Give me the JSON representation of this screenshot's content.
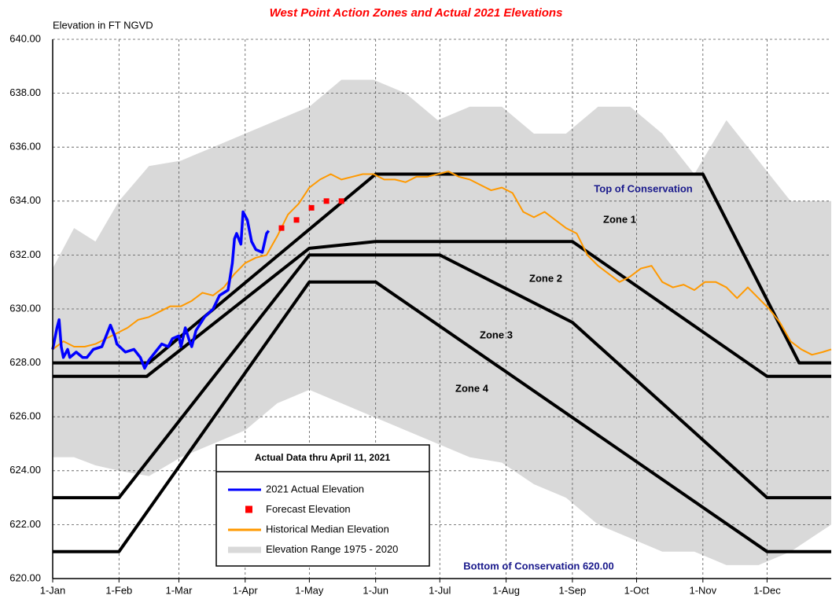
{
  "chart_data": {
    "type": "line",
    "title": "West Point Action Zones and Actual 2021 Elevations",
    "y_axis_label": "Elevation in FT NGVD",
    "xlim": [
      0,
      364
    ],
    "xticks": [
      {
        "value": 0,
        "label": "1-Jan"
      },
      {
        "value": 31,
        "label": "1-Feb"
      },
      {
        "value": 59,
        "label": "1-Mar"
      },
      {
        "value": 90,
        "label": "1-Apr"
      },
      {
        "value": 120,
        "label": "1-May"
      },
      {
        "value": 151,
        "label": "1-Jun"
      },
      {
        "value": 181,
        "label": "1-Jul"
      },
      {
        "value": 212,
        "label": "1-Aug"
      },
      {
        "value": 243,
        "label": "1-Sep"
      },
      {
        "value": 273,
        "label": "1-Oct"
      },
      {
        "value": 304,
        "label": "1-Nov"
      },
      {
        "value": 334,
        "label": "1-Dec"
      }
    ],
    "ylim": [
      620,
      640
    ],
    "yticks": [
      {
        "value": 620,
        "label": "620.00"
      },
      {
        "value": 622,
        "label": "622.00"
      },
      {
        "value": 624,
        "label": "624.00"
      },
      {
        "value": 626,
        "label": "626.00"
      },
      {
        "value": 628,
        "label": "628.00"
      },
      {
        "value": 630,
        "label": "630.00"
      },
      {
        "value": 632,
        "label": "632.00"
      },
      {
        "value": 634,
        "label": "634.00"
      },
      {
        "value": 636,
        "label": "636.00"
      },
      {
        "value": 638,
        "label": "638.00"
      },
      {
        "value": 640,
        "label": "640.00"
      }
    ],
    "grid": true,
    "legend_title": "Actual Data thru April 11, 2021",
    "series": [
      {
        "name": "Elevation Range 1975 - 2020",
        "kind": "band",
        "color": "#d9d9d9",
        "x": [
          0,
          10,
          20,
          31,
          45,
          60,
          75,
          90,
          105,
          120,
          135,
          150,
          165,
          180,
          195,
          210,
          225,
          240,
          255,
          270,
          285,
          300,
          315,
          330,
          345,
          364
        ],
        "low": [
          624.5,
          624.5,
          624.2,
          624,
          623.8,
          624.5,
          625,
          625.5,
          626.5,
          627,
          626.5,
          626,
          625.5,
          625,
          624.5,
          624.3,
          623.5,
          623,
          622,
          621.5,
          621,
          621,
          620.5,
          620.5,
          621,
          622
        ],
        "high": [
          631.5,
          633,
          632.5,
          634,
          635.3,
          635.5,
          636,
          636.5,
          637,
          637.5,
          638.5,
          638.5,
          638,
          637,
          637.5,
          637.5,
          636.5,
          636.5,
          637.5,
          637.5,
          636.5,
          635,
          637,
          635.5,
          634,
          634
        ]
      },
      {
        "name": "Historical Median Elevation",
        "kind": "line",
        "color": "#ff9900",
        "x": [
          0,
          5,
          10,
          15,
          20,
          25,
          30,
          35,
          40,
          45,
          50,
          55,
          60,
          65,
          70,
          75,
          80,
          85,
          90,
          95,
          100,
          105,
          110,
          115,
          120,
          125,
          130,
          135,
          140,
          145,
          150,
          155,
          160,
          165,
          170,
          175,
          180,
          185,
          190,
          195,
          200,
          205,
          210,
          215,
          220,
          225,
          230,
          235,
          240,
          245,
          250,
          255,
          260,
          265,
          270,
          275,
          280,
          285,
          290,
          295,
          300,
          305,
          310,
          315,
          320,
          325,
          330,
          335,
          340,
          345,
          350,
          355,
          360,
          364
        ],
        "values": [
          628.5,
          628.8,
          628.6,
          628.6,
          628.7,
          628.9,
          629.1,
          629.3,
          629.6,
          629.7,
          629.9,
          630.1,
          630.1,
          630.3,
          630.6,
          630.5,
          630.8,
          631.3,
          631.7,
          631.9,
          632.0,
          632.7,
          633.5,
          633.9,
          634.5,
          634.8,
          635.0,
          634.8,
          634.9,
          635.0,
          635.0,
          634.8,
          634.8,
          634.7,
          634.9,
          634.9,
          635.0,
          635.1,
          634.9,
          634.8,
          634.6,
          634.4,
          634.5,
          634.3,
          633.6,
          633.4,
          633.6,
          633.3,
          633.0,
          632.8,
          632.0,
          631.6,
          631.3,
          631.0,
          631.2,
          631.5,
          631.6,
          631.0,
          630.8,
          630.9,
          630.7,
          631.0,
          631.0,
          630.8,
          630.4,
          630.8,
          630.4,
          630.0,
          629.5,
          628.8,
          628.5,
          628.3,
          628.4,
          628.5
        ]
      },
      {
        "name": "2021 Actual Elevation",
        "kind": "line",
        "color": "#0000ff",
        "x": [
          0,
          2,
          3,
          4,
          5,
          7,
          8,
          11,
          14,
          16,
          19,
          23,
          27,
          29,
          30,
          34,
          38,
          41,
          43,
          45,
          48,
          51,
          54,
          56,
          59,
          60,
          62,
          64,
          65,
          67,
          71,
          75,
          78,
          82,
          84,
          85,
          86,
          88,
          89,
          91,
          93,
          95,
          98,
          100,
          101
        ],
        "values": [
          628.5,
          629.3,
          629.6,
          628.6,
          628.2,
          628.5,
          628.2,
          628.4,
          628.2,
          628.2,
          628.5,
          628.6,
          629.4,
          629.0,
          628.7,
          628.4,
          628.5,
          628.2,
          627.8,
          628.1,
          628.4,
          628.7,
          628.6,
          628.9,
          629.0,
          628.6,
          629.3,
          628.8,
          628.6,
          629.2,
          629.7,
          630.0,
          630.5,
          630.7,
          631.7,
          632.6,
          632.8,
          632.4,
          633.6,
          633.3,
          632.5,
          632.2,
          632.1,
          632.8,
          632.9
        ]
      },
      {
        "name": "Forecast Elevation",
        "kind": "marker",
        "color": "#ff0000",
        "x": [
          107,
          114,
          121,
          128,
          135
        ],
        "values": [
          633.0,
          633.3,
          633.75,
          634.0,
          634.0
        ]
      }
    ],
    "zone_lines": [
      {
        "color": "#000000",
        "x": [
          0,
          45,
          151,
          304,
          349,
          364
        ],
        "values": [
          628,
          628,
          635,
          635,
          628,
          628
        ]
      },
      {
        "color": "#000000",
        "x": [
          0,
          44,
          120,
          151,
          243,
          334,
          364
        ],
        "values": [
          627.5,
          627.5,
          632.25,
          632.5,
          632.5,
          627.5,
          627.5
        ]
      },
      {
        "color": "#000000",
        "x": [
          0,
          31,
          120,
          181,
          243,
          334,
          364
        ],
        "values": [
          623,
          623,
          632,
          632,
          629.5,
          623,
          623
        ]
      },
      {
        "color": "#000000",
        "x": [
          0,
          31,
          120,
          151,
          334,
          364
        ],
        "values": [
          621,
          621,
          631,
          631,
          621,
          621
        ]
      }
    ],
    "annotations": [
      "Top of Conservation",
      "Zone 1",
      "Zone 2",
      "Zone 3",
      "Zone 4",
      "Bottom of Conservation 620.00"
    ]
  }
}
